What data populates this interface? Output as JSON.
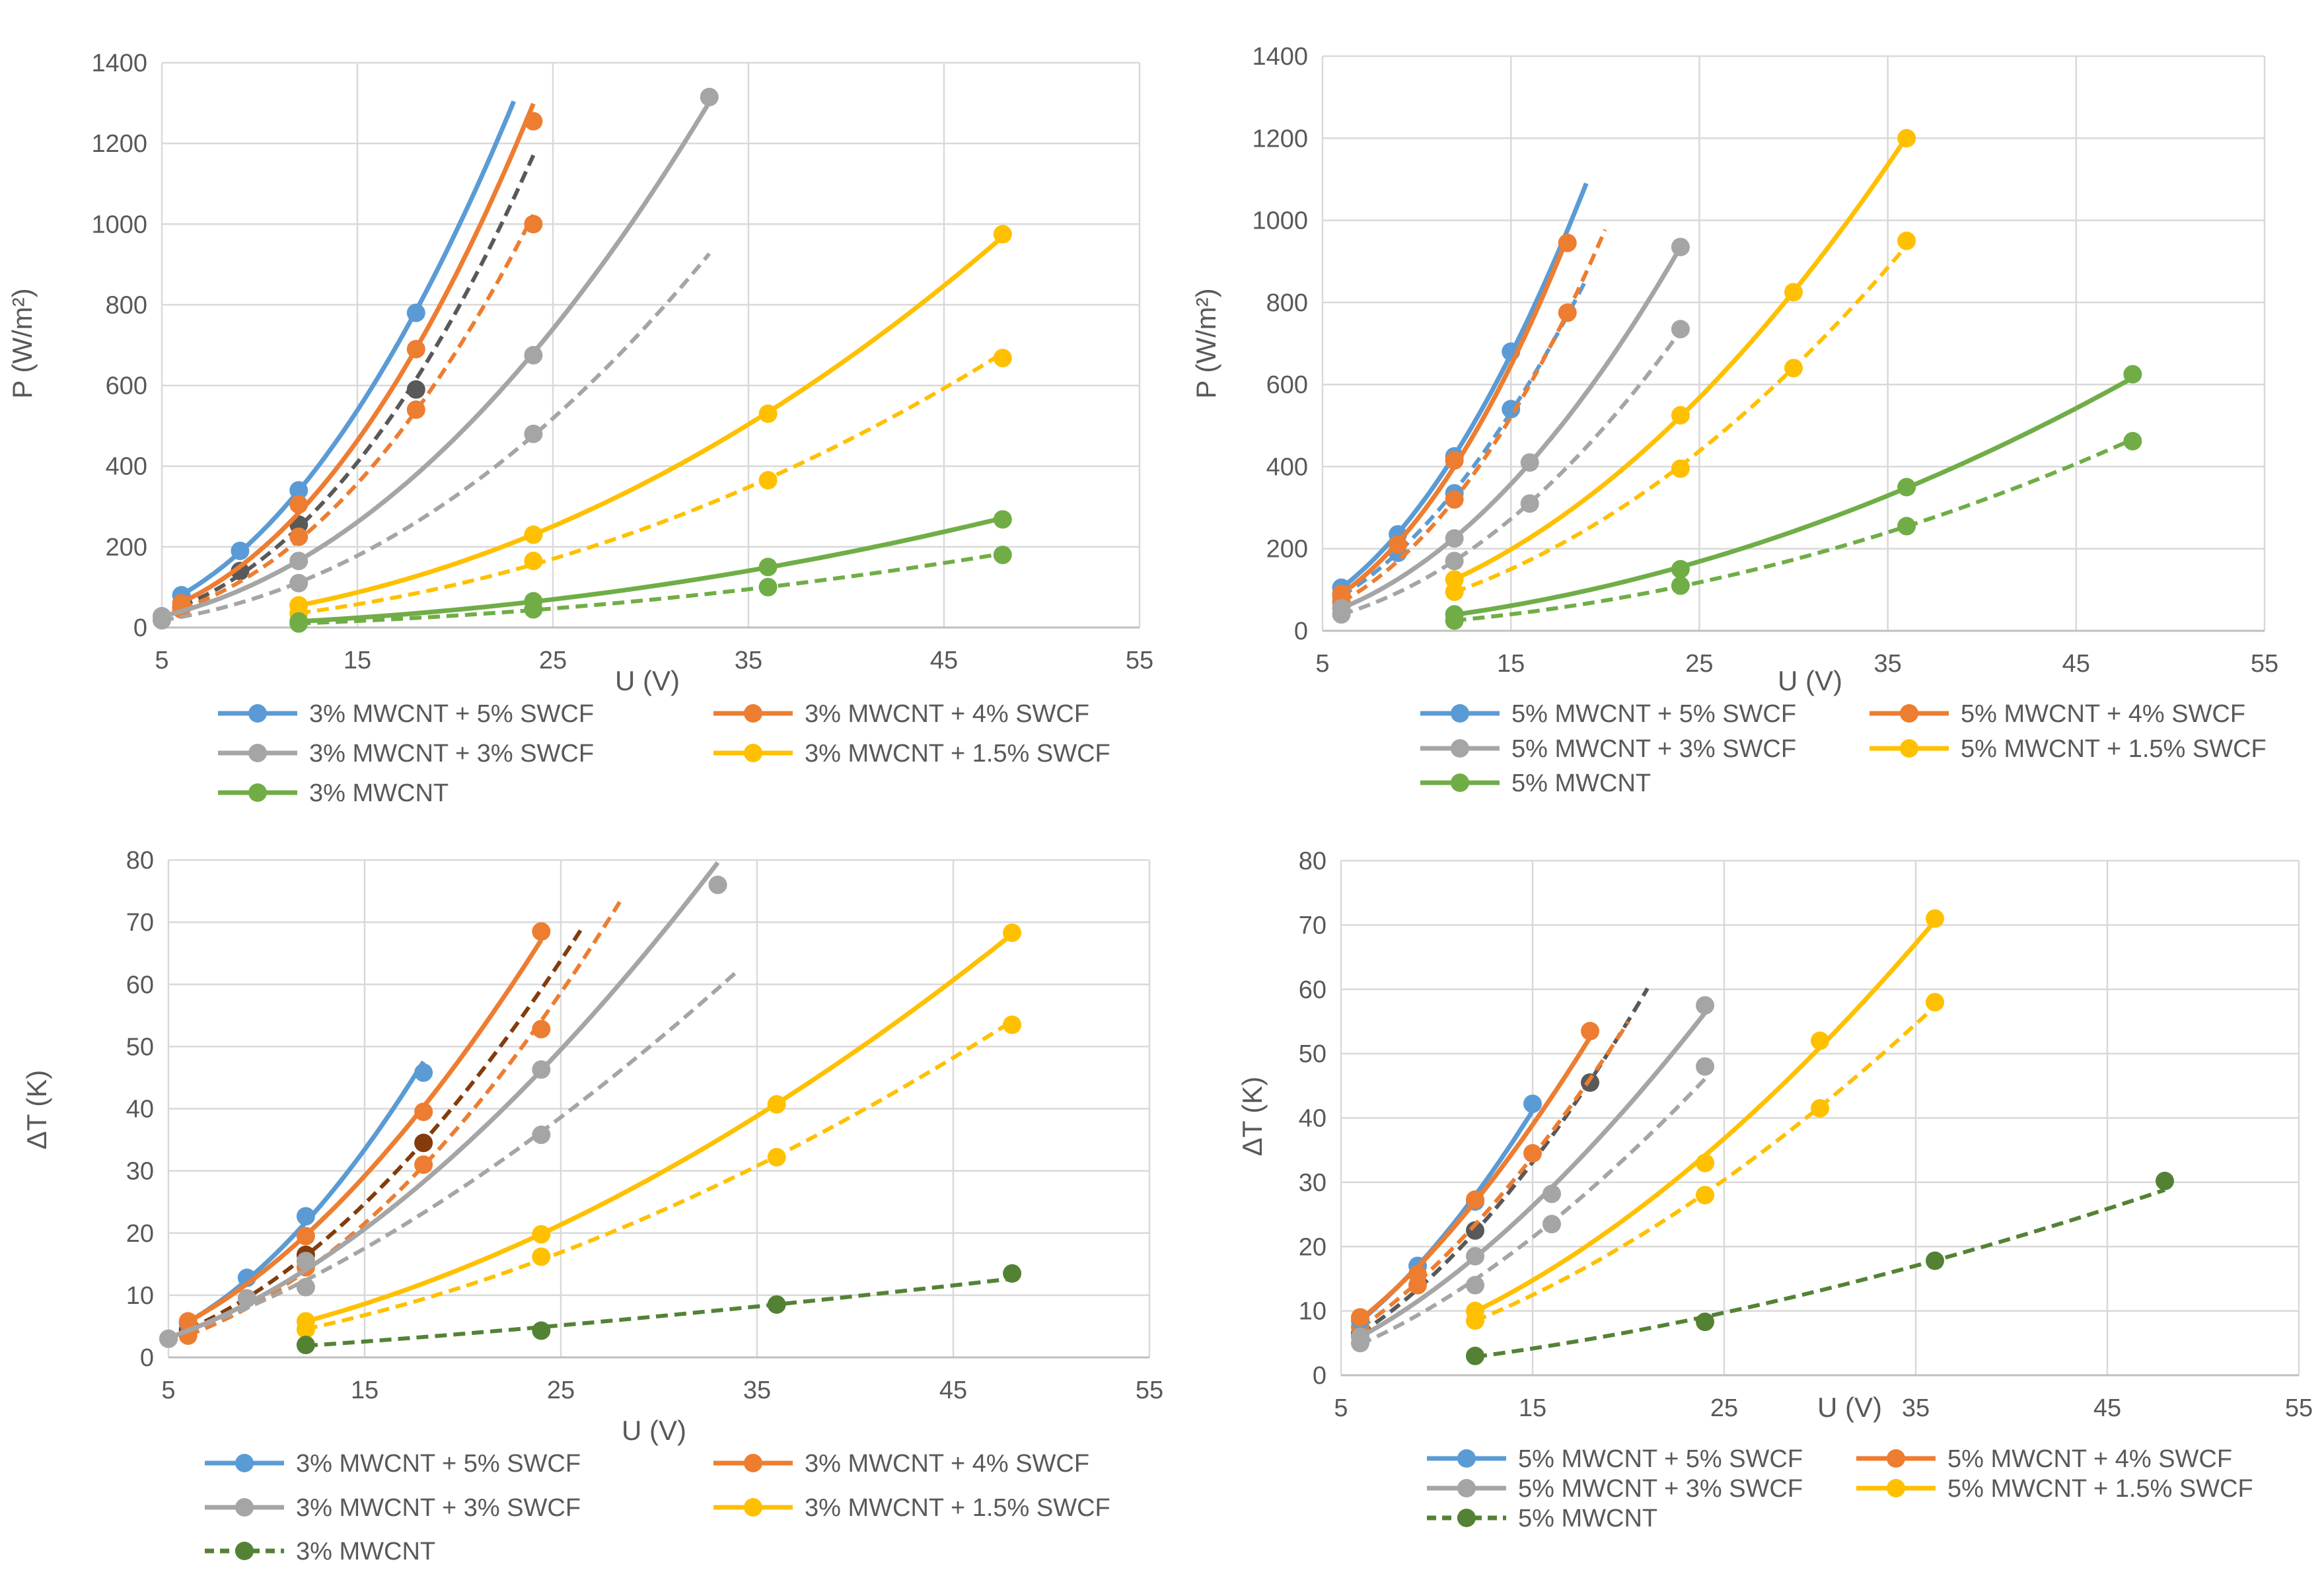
{
  "colors": {
    "blue": "#5B9BD5",
    "orange": "#ED7D31",
    "gray": "#A5A5A5",
    "yellow": "#FFC000",
    "green": "#70AD47",
    "darkgreen": "#548235",
    "darkgray": "#595959",
    "brown": "#843C0C",
    "grid": "#D9D9D9",
    "text": "#595959"
  },
  "chart_data": [
    {
      "id": "p3",
      "type": "line",
      "xlabel": "U (V)",
      "ylabel": "P (W/m²)",
      "xlim": [
        5,
        55
      ],
      "ylim": [
        0,
        1400
      ],
      "xticks": [
        5,
        15,
        25,
        35,
        45,
        55
      ],
      "yticks": [
        0,
        200,
        400,
        600,
        800,
        1000,
        1200,
        1400
      ],
      "grid": true,
      "legend_position": "bottom",
      "legend": [
        {
          "label": "3% MWCNT + 5% SWCF",
          "color": "blue",
          "dash": false
        },
        {
          "label": "3% MWCNT + 4% SWCF",
          "color": "orange",
          "dash": false
        },
        {
          "label": "3% MWCNT + 3% SWCF",
          "color": "gray",
          "dash": false
        },
        {
          "label": "3% MWCNT + 1.5% SWCF",
          "color": "yellow",
          "dash": false
        },
        {
          "label": "3% MWCNT",
          "color": "green",
          "dash": false
        }
      ],
      "series": [
        {
          "name": "3% MWCNT + 5% SWCF",
          "color": "blue",
          "dash": false,
          "x": [
            6,
            9,
            12,
            18
          ],
          "y": [
            80,
            190,
            340,
            780
          ],
          "fit_to": 23
        }
      ]
    }
  ]
}
